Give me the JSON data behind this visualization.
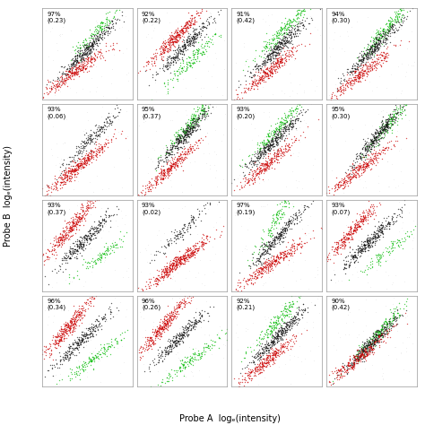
{
  "grid_rows": 4,
  "grid_cols": 4,
  "panels": [
    {
      "pct": "97%",
      "val": "(0.23)"
    },
    {
      "pct": "92%",
      "val": "(0.22)"
    },
    {
      "pct": "91%",
      "val": "(0.42)"
    },
    {
      "pct": "94%",
      "val": "(0.30)"
    },
    {
      "pct": "93%",
      "val": "(0.06)"
    },
    {
      "pct": "95%",
      "val": "(0.37)"
    },
    {
      "pct": "93%",
      "val": "(0.20)"
    },
    {
      "pct": "95%",
      "val": "(0.30)"
    },
    {
      "pct": "93%",
      "val": "(0.37)"
    },
    {
      "pct": "93%",
      "val": "(0.02)"
    },
    {
      "pct": "97%",
      "val": "(0.19)"
    },
    {
      "pct": "93%",
      "val": "(0.07)"
    },
    {
      "pct": "96%",
      "val": "(0.34)"
    },
    {
      "pct": "96%",
      "val": "(0.26)"
    },
    {
      "pct": "92%",
      "val": "(0.21)"
    },
    {
      "pct": "90%",
      "val": "(0.42)"
    }
  ],
  "green_color": "#00bb00",
  "red_color": "#cc0000",
  "black_color": "#111111",
  "noise_color": "#bbbbbb",
  "bg_color": "#ffffff",
  "xlabel": "Probe A  logₑ(intensity)",
  "ylabel": "Probe B  logₑ(intensity)"
}
